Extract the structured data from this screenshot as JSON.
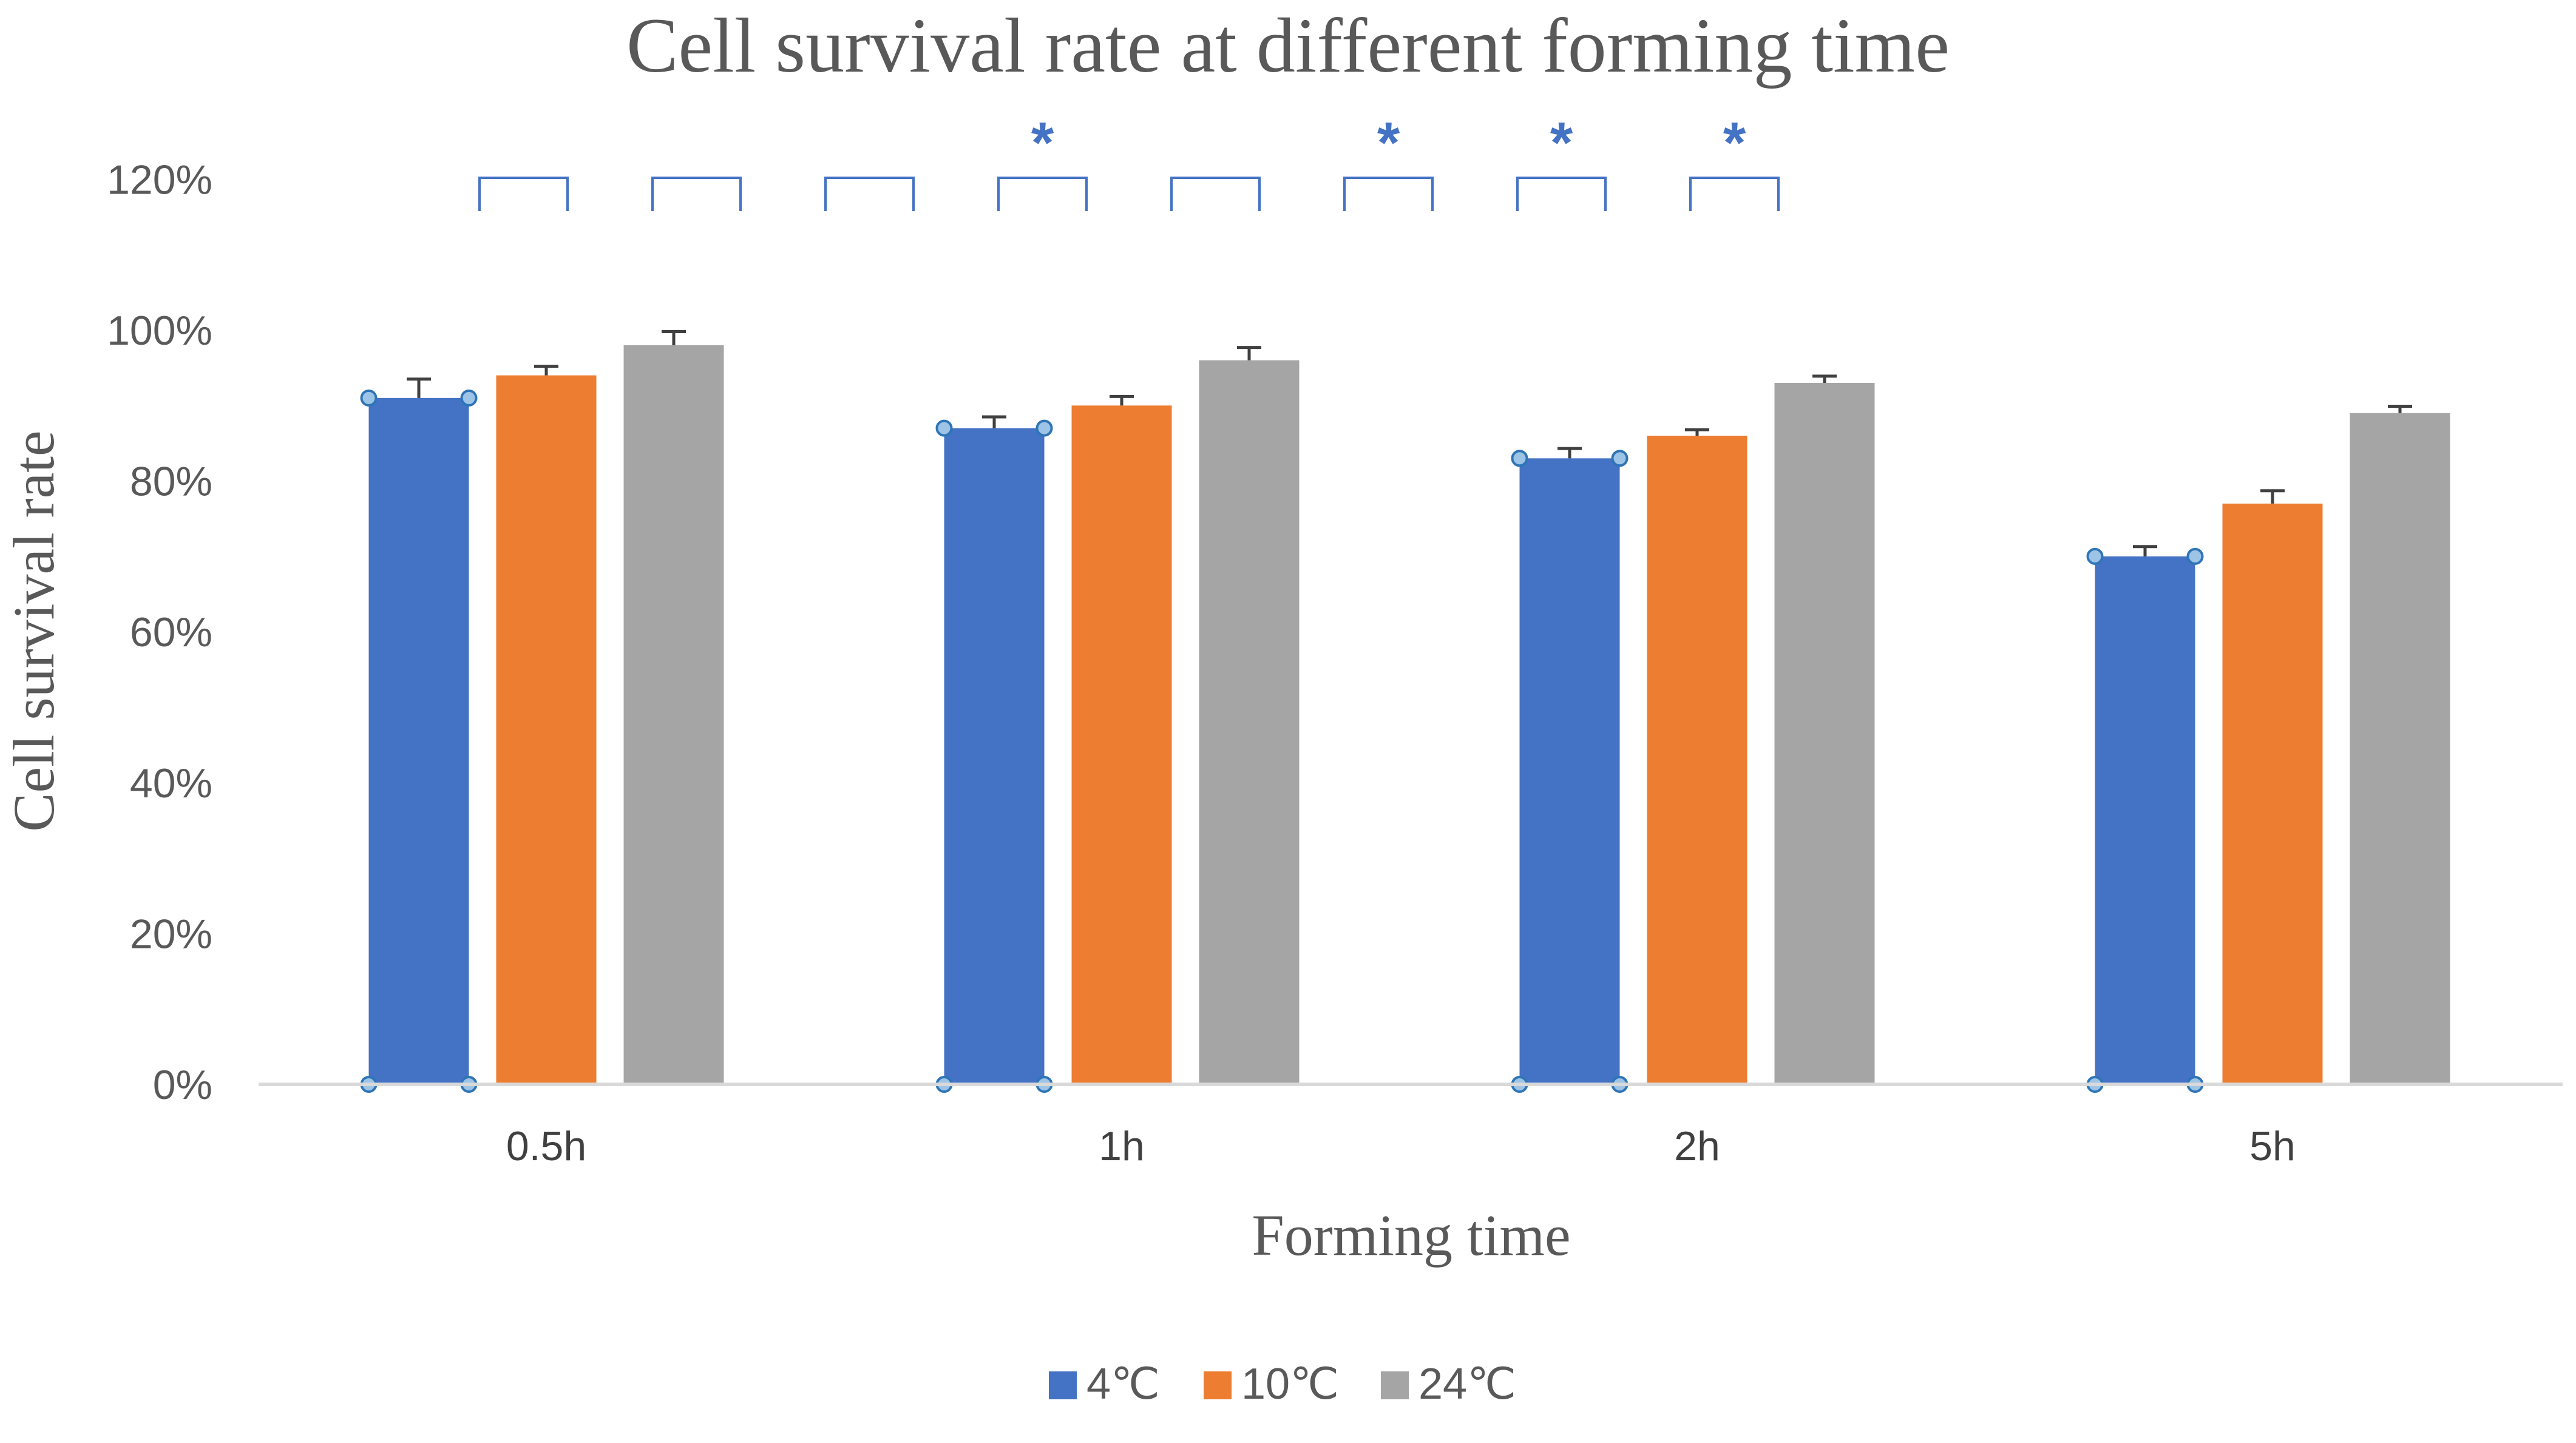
{
  "chart_data": {
    "type": "bar",
    "title": "Cell survival rate at different forming time",
    "xlabel": "Forming time",
    "ylabel": "Cell survival rate",
    "categories": [
      "0.5h",
      "1h",
      "2h",
      "5h"
    ],
    "series": [
      {
        "name": "4℃",
        "color": "#4472C4",
        "values": [
          91,
          87,
          83,
          70
        ],
        "errors": [
          2.5,
          1.5,
          1.3,
          1.3
        ]
      },
      {
        "name": "10℃",
        "color": "#ED7D31",
        "values": [
          94,
          90,
          86,
          77
        ],
        "errors": [
          1.2,
          1.2,
          0.8,
          1.7
        ]
      },
      {
        "name": "24℃",
        "color": "#A5A5A5",
        "values": [
          98,
          96,
          93,
          89
        ],
        "errors": [
          1.8,
          1.7,
          0.9,
          0.9
        ]
      }
    ],
    "ylim": [
      0,
      120
    ],
    "yticks": [
      0,
      20,
      40,
      60,
      80,
      100,
      120
    ],
    "ytick_labels": [
      "0%",
      "20%",
      "40%",
      "60%",
      "80%",
      "100%",
      "120%"
    ],
    "gridlines": false,
    "legend_position": "bottom-center",
    "significance_brackets": [
      {
        "label": ""
      },
      {
        "label": ""
      },
      {
        "label": ""
      },
      {
        "label": "*"
      },
      {
        "label": ""
      },
      {
        "label": "*"
      },
      {
        "label": "*"
      },
      {
        "label": "*"
      }
    ],
    "bracket_color": "#4472C4"
  }
}
